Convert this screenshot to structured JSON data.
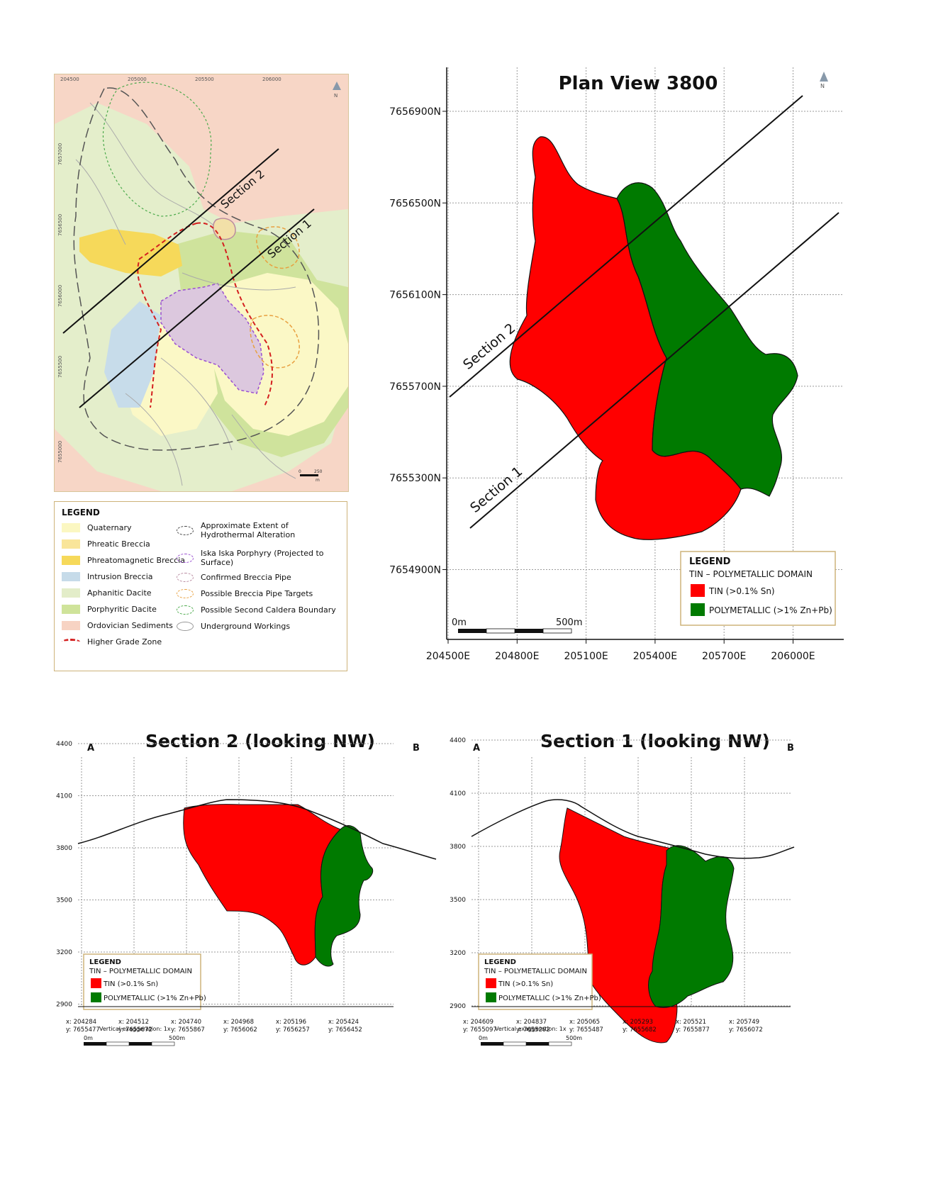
{
  "geo_map": {
    "top_ticks": [
      "204500",
      "205000",
      "205500",
      "206000"
    ],
    "left_ticks": [
      "7657000",
      "7656500",
      "7656000",
      "7655500",
      "7655000"
    ],
    "section_labels": [
      "Section 2",
      "Section 1"
    ],
    "north": "N",
    "scale": {
      "start": "0",
      "end": "250",
      "unit": "m"
    }
  },
  "map_legend": {
    "title": "LEGEND",
    "left_items": [
      {
        "label": "Quaternary",
        "color": "#fbf7c2"
      },
      {
        "label": "Phreatic Breccia",
        "color": "#f9e59a"
      },
      {
        "label": "Phreatomagnetic Breccia",
        "color": "#f6d95a"
      },
      {
        "label": "Intrusion Breccia",
        "color": "#c6dbe9"
      },
      {
        "label": "Aphanitic Dacite",
        "color": "#e3edc9"
      },
      {
        "label": "Porphyritic Dacite",
        "color": "#cfe39a"
      },
      {
        "label": "Ordovician Sediments",
        "color": "#f7d3c3"
      },
      {
        "label": "Higher Grade Zone",
        "color": "#d42020"
      }
    ],
    "right_items": [
      {
        "label": "Approximate Extent of Hydrothermal Alteration",
        "color": "#444444"
      },
      {
        "label": "Iska Iska Porphyry (Projected to Surface)",
        "color": "#9a4fd1"
      },
      {
        "label": "Confirmed Breccia Pipe",
        "color": "#b98aa0"
      },
      {
        "label": "Possible Breccia Pipe Targets",
        "color": "#e8a040"
      },
      {
        "label": "Possible Second Caldera Boundary",
        "color": "#4caa4c"
      },
      {
        "label": "Underground Workings",
        "color": "#999999"
      }
    ]
  },
  "plan_view": {
    "title": "Plan View 3800",
    "north": "N",
    "y_ticks": [
      "7656900N",
      "7656500N",
      "7656100N",
      "7655700N",
      "7655300N",
      "7654900N"
    ],
    "x_ticks": [
      "204500E",
      "204800E",
      "205100E",
      "205400E",
      "205700E",
      "206000E"
    ],
    "section_labels": [
      "Section 2",
      "Section 1"
    ],
    "scale": {
      "start": "0m",
      "end": "500m"
    },
    "legend": {
      "title": "LEGEND",
      "subtitle": "TIN – POLYMETALLIC DOMAIN",
      "tin": "TIN (>0.1% Sn)",
      "poly": "POLYMETALLIC (>1% Zn+Pb)"
    },
    "colors": {
      "tin": "#ff0000",
      "poly": "#007a00"
    }
  },
  "section2": {
    "title": "Section 2 (looking NW)",
    "end_a": "A",
    "end_b": "B",
    "y_ticks": [
      "4400",
      "4100",
      "3800",
      "3500",
      "3200",
      "2900"
    ],
    "x_ticks": [
      {
        "x": "x: 204284",
        "y": "y: 7655477"
      },
      {
        "x": "x: 204512",
        "y": "y: 7655672"
      },
      {
        "x": "x: 204740",
        "y": "y: 7655867"
      },
      {
        "x": "x: 204968",
        "y": "y: 7656062"
      },
      {
        "x": "x: 205196",
        "y": "y: 7656257"
      },
      {
        "x": "x: 205424",
        "y": "y: 7656452"
      }
    ],
    "legend": {
      "title": "LEGEND",
      "subtitle": "TIN – POLYMETALLIC DOMAIN",
      "tin": "TIN (>0.1% Sn)",
      "poly": "POLYMETALLIC (>1% Zn+Pb)"
    },
    "exaggeration": "Vertical exaggeration: 1x",
    "scale": {
      "start": "0m",
      "end": "500m"
    }
  },
  "section1": {
    "title": "Section 1 (looking NW)",
    "end_a": "A",
    "end_b": "B",
    "y_ticks": [
      "4400",
      "4100",
      "3800",
      "3500",
      "3200",
      "2900"
    ],
    "x_ticks": [
      {
        "x": "x: 204609",
        "y": "y: 7655097"
      },
      {
        "x": "x: 204837",
        "y": "y: 7655292"
      },
      {
        "x": "x: 205065",
        "y": "y: 7655487"
      },
      {
        "x": "x: 205293",
        "y": "y: 7655682"
      },
      {
        "x": "x: 205521",
        "y": "y: 7655877"
      },
      {
        "x": "x: 205749",
        "y": "y: 7656072"
      }
    ],
    "legend": {
      "title": "LEGEND",
      "subtitle": "TIN – POLYMETALLIC DOMAIN",
      "tin": "TIN (>0.1% Sn)",
      "poly": "POLYMETALLIC (>1% Zn+Pb)"
    },
    "exaggeration": "Vertical exaggeration: 1x",
    "scale": {
      "start": "0m",
      "end": "500m"
    }
  }
}
